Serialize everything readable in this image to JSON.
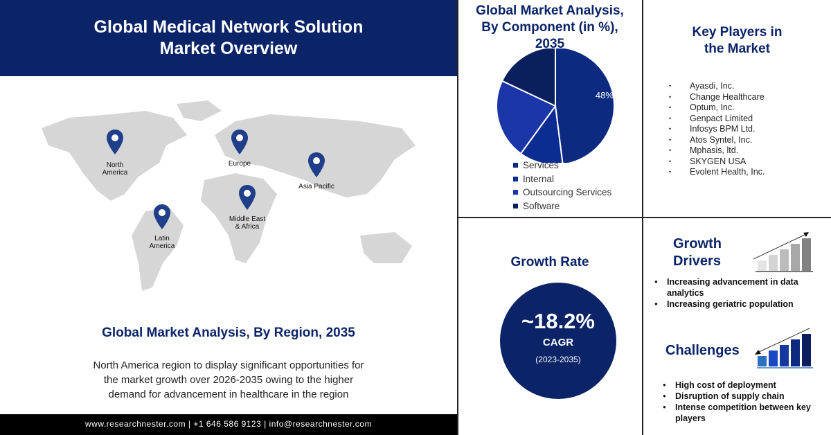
{
  "header": {
    "title_line1": "Global Medical Network Solution",
    "title_line2": "Market Overview"
  },
  "map": {
    "regions": [
      {
        "label_l1": "North",
        "label_l2": "America"
      },
      {
        "label_l1": "Europe",
        "label_l2": ""
      },
      {
        "label_l1": "Asia Pacific",
        "label_l2": ""
      },
      {
        "label_l1": "Middle East",
        "label_l2": "& Africa"
      },
      {
        "label_l1": "Latin",
        "label_l2": "America"
      }
    ],
    "pin_color": "#1f3f8a"
  },
  "region_section": {
    "title": "Global Market Analysis, By Region, 2035",
    "description_lines": [
      "North America region to display significant opportunities for",
      "the market growth over 2026-2035 owing to the higher",
      "demand for advancement in healthcare in the region"
    ]
  },
  "footer": {
    "text": "www.researchnester.com | +1 646 586 9123 | info@researchnester.com"
  },
  "component": {
    "title_lines": [
      "Global Market Analysis,",
      "By Component (in %),",
      "2035"
    ]
  },
  "chart_data": {
    "type": "pie",
    "title": "Global Market Analysis, By Component (in %), 2035",
    "categories": [
      "Services",
      "Internal",
      "Outsourcing Services",
      "Software"
    ],
    "values": [
      48,
      12,
      22,
      18
    ],
    "data_labels": [
      "48%",
      "",
      "",
      ""
    ],
    "colors": [
      "#0c2a80",
      "#0b2c92",
      "#1a36a8",
      "#0a1f5e"
    ],
    "legend": "bottom"
  },
  "key_players": {
    "title_l1": "Key Players in",
    "title_l2": "the Market",
    "items": [
      "Ayasdi, Inc.",
      "Change Healthcare",
      "Optum, Inc.",
      "Genpact Limited",
      "Infosys BPM Ltd.",
      "Atos Syntel, Inc.",
      "Mphasis, ltd.",
      "SKYGEN USA",
      "Evolent Health, Inc."
    ]
  },
  "growth_rate": {
    "title": "Growth Rate",
    "value": "~18.2%",
    "label": "CAGR",
    "period": "(2023-2035)"
  },
  "growth_drivers": {
    "title_l1": "Growth",
    "title_l2": "Drivers",
    "items": [
      "Increasing advancement in data analytics",
      "Increasing geriatric population"
    ]
  },
  "challenges": {
    "title": "Challenges",
    "items": [
      "High cost of deployment",
      "Disruption of supply chain",
      "Intense competition between key players"
    ]
  }
}
